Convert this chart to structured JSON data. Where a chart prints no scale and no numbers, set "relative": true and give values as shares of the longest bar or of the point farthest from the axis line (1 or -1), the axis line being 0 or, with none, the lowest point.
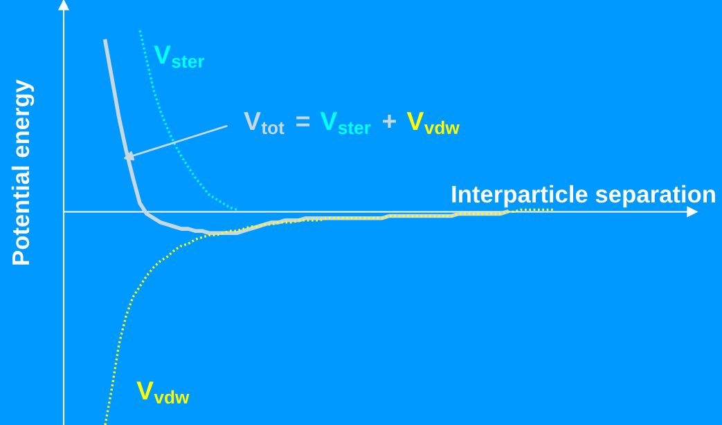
{
  "chart_data": {
    "type": "line",
    "relative": true,
    "xlabel": "Interparticle separation",
    "ylabel": "Potential energy",
    "marker": "none",
    "grid": false,
    "categories": [
      null,
      null,
      null,
      null,
      null,
      null,
      null,
      null,
      null,
      null,
      null,
      null,
      null,
      null,
      null,
      null,
      null,
      null,
      null,
      null,
      null,
      null,
      null,
      null,
      null,
      null,
      null,
      null,
      null,
      null,
      null,
      null,
      null,
      null,
      null,
      null,
      null,
      null,
      null,
      null,
      null,
      null,
      null,
      null,
      null,
      null,
      null,
      null,
      null,
      null,
      null,
      null,
      null,
      null,
      null,
      null,
      null,
      null,
      null,
      null,
      null,
      null,
      null,
      null,
      null,
      null
    ],
    "series": [
      {
        "name": "V$_{tot}$",
        "color": "#c8d8e0",
        "line_style": "solid",
        "values": [
          0.8,
          0.62,
          0.44,
          0.29,
          0.16,
          0.04,
          -0.01,
          -0.03,
          -0.05,
          -0.06,
          -0.07,
          -0.08,
          -0.08,
          -0.09,
          -0.09,
          -0.1,
          -0.1,
          -0.1,
          -0.1,
          -0.1,
          -0.09,
          -0.08,
          -0.07,
          -0.06,
          -0.05,
          -0.05,
          -0.04,
          -0.04,
          -0.04,
          -0.03,
          -0.03,
          -0.03,
          -0.03,
          -0.03,
          -0.03,
          -0.03,
          -0.03,
          -0.03,
          -0.03,
          -0.03,
          -0.03,
          -0.02,
          -0.02,
          -0.02,
          -0.02,
          -0.02,
          -0.02,
          -0.02,
          -0.02,
          -0.02,
          -0.02,
          -0.01,
          -0.01,
          -0.01,
          -0.01,
          -0.01,
          -0.01,
          -0.01,
          0,
          null,
          null,
          null,
          null,
          null,
          null,
          null
        ]
      },
      {
        "name": "V$_{ster}$",
        "color": "#00ffff",
        "line_style": "dotted",
        "values": [
          null,
          null,
          null,
          null,
          null,
          0.85,
          0.71,
          0.57,
          0.47,
          0.39,
          0.32,
          0.26,
          0.21,
          0.16,
          0.12,
          0.08,
          0.06,
          0.04,
          0.02,
          0.01,
          null,
          null,
          null,
          null,
          null,
          null,
          null,
          null,
          null,
          null,
          null,
          null,
          null,
          null,
          null,
          null,
          null,
          null,
          null,
          null,
          null,
          null,
          null,
          null,
          null,
          null,
          null,
          null,
          null,
          null,
          null,
          null,
          null,
          null,
          null,
          null,
          null,
          null,
          null,
          null,
          null,
          null,
          null,
          null,
          null,
          null
        ]
      },
      {
        "name": "V$_{vdw}$",
        "color": "#ffff00",
        "line_style": "dotted",
        "values": [
          -1.0,
          -0.82,
          -0.62,
          -0.49,
          -0.4,
          -0.35,
          -0.3,
          -0.26,
          -0.23,
          -0.21,
          -0.18,
          -0.16,
          -0.15,
          -0.13,
          -0.12,
          -0.11,
          -0.11,
          -0.1,
          -0.09,
          -0.09,
          -0.08,
          -0.07,
          -0.07,
          -0.06,
          -0.06,
          -0.05,
          -0.05,
          -0.05,
          -0.04,
          -0.04,
          -0.04,
          -0.04,
          -0.03,
          -0.03,
          -0.03,
          -0.03,
          -0.03,
          -0.03,
          -0.03,
          -0.03,
          -0.03,
          -0.02,
          -0.02,
          -0.02,
          -0.02,
          -0.02,
          -0.02,
          -0.02,
          -0.02,
          -0.02,
          -0.02,
          -0.01,
          -0.01,
          -0.01,
          -0.01,
          -0.01,
          -0.01,
          -0.01,
          0,
          0,
          0.01,
          0.01,
          0.01,
          0.01,
          0.01,
          0.01
        ]
      }
    ],
    "annotations": [
      "=",
      "V$_{ster}$",
      "+",
      "V$_{vdw}$"
    ]
  }
}
